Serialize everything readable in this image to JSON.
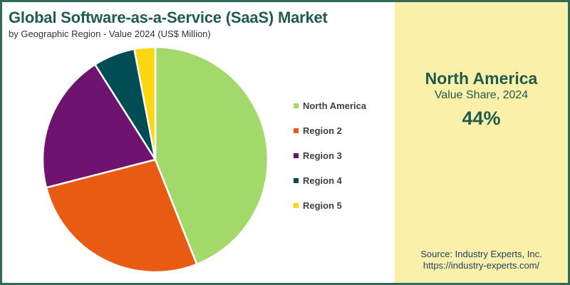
{
  "title": "Global Software-as-a-Service (SaaS) Market",
  "subtitle": "by Geographic Region - Value 2024 (US$ Million)",
  "side_panel": {
    "region": "North America",
    "caption": "Value Share, 2024",
    "value": "44%"
  },
  "source": {
    "line1": "Source: Industry Experts, Inc.",
    "line2": "https://industry-experts.com/"
  },
  "colors": {
    "border": "#2f6b57",
    "title": "#1f5c4d",
    "panel": "#fbf0a9"
  },
  "chart_data": {
    "type": "pie",
    "title": "Global Software-as-a-Service (SaaS) Market",
    "subtitle": "by Geographic Region - Value 2024 (US$ Million)",
    "legend_position": "right",
    "categories": [
      "North America",
      "Region 2",
      "Region 3",
      "Region 4",
      "Region 5"
    ],
    "values": [
      44,
      27,
      20,
      6,
      3
    ],
    "unit": "%",
    "colors": [
      "#a3d86b",
      "#e95b12",
      "#6e1470",
      "#004d55",
      "#fbd712"
    ]
  }
}
